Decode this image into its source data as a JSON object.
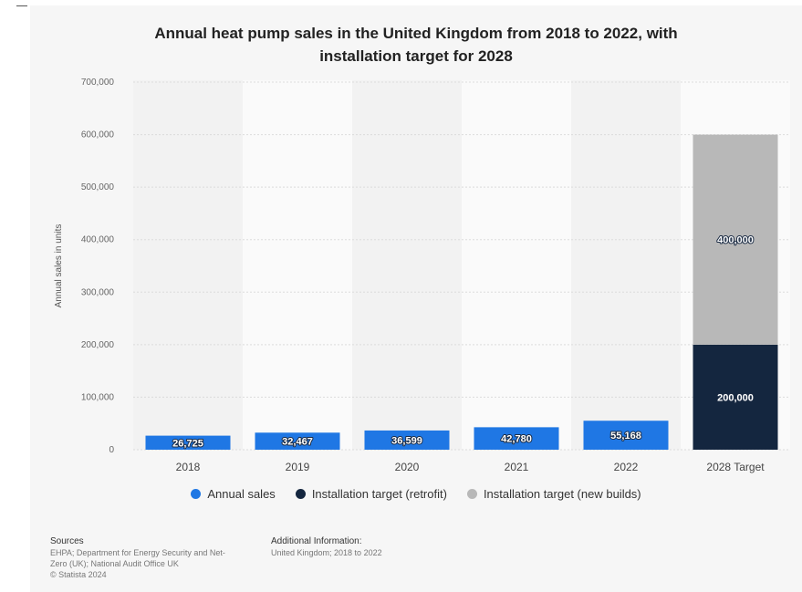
{
  "title_line1": "Annual heat pump sales in the United Kingdom from 2018 to 2022, with",
  "title_line2": "installation target for 2028",
  "chart_data": {
    "type": "bar",
    "stacked": true,
    "title": "Annual heat pump sales in the United Kingdom from 2018 to 2022, with installation target for 2028",
    "ylabel": "Annual sales in units",
    "xlabel": "",
    "ylim": [
      0,
      700000
    ],
    "yticks": [
      0,
      100000,
      200000,
      300000,
      400000,
      500000,
      600000,
      700000
    ],
    "ytick_labels": [
      "0",
      "100,000",
      "200,000",
      "300,000",
      "400,000",
      "500,000",
      "600,000",
      "700,000"
    ],
    "categories": [
      "2018",
      "2019",
      "2020",
      "2021",
      "2022",
      "2028 Target"
    ],
    "series": [
      {
        "name": "Annual sales",
        "color": "#1f77e4",
        "values": [
          26725,
          32467,
          36599,
          42780,
          55168,
          null
        ],
        "labels": [
          "26,725",
          "32,467",
          "36,599",
          "42,780",
          "55,168",
          ""
        ]
      },
      {
        "name": "Installation target (retrofit)",
        "color": "#14263f",
        "values": [
          null,
          null,
          null,
          null,
          null,
          200000
        ],
        "labels": [
          "",
          "",
          "",
          "",
          "",
          "200,000"
        ]
      },
      {
        "name": "Installation target (new builds)",
        "color": "#b8b8b8",
        "values": [
          null,
          null,
          null,
          null,
          null,
          400000
        ],
        "labels": [
          "",
          "",
          "",
          "",
          "",
          "400,000"
        ]
      }
    ],
    "grid": true,
    "legend_position": "bottom"
  },
  "footer": {
    "sources_heading": "Sources",
    "sources_line1": "EHPA; Department for Energy Security and Net-",
    "sources_line2": "Zero (UK); National Audit Office UK",
    "copyright": "© Statista 2024",
    "additional_heading": "Additional Information:",
    "additional_text": "United Kingdom; 2018 to 2022"
  }
}
